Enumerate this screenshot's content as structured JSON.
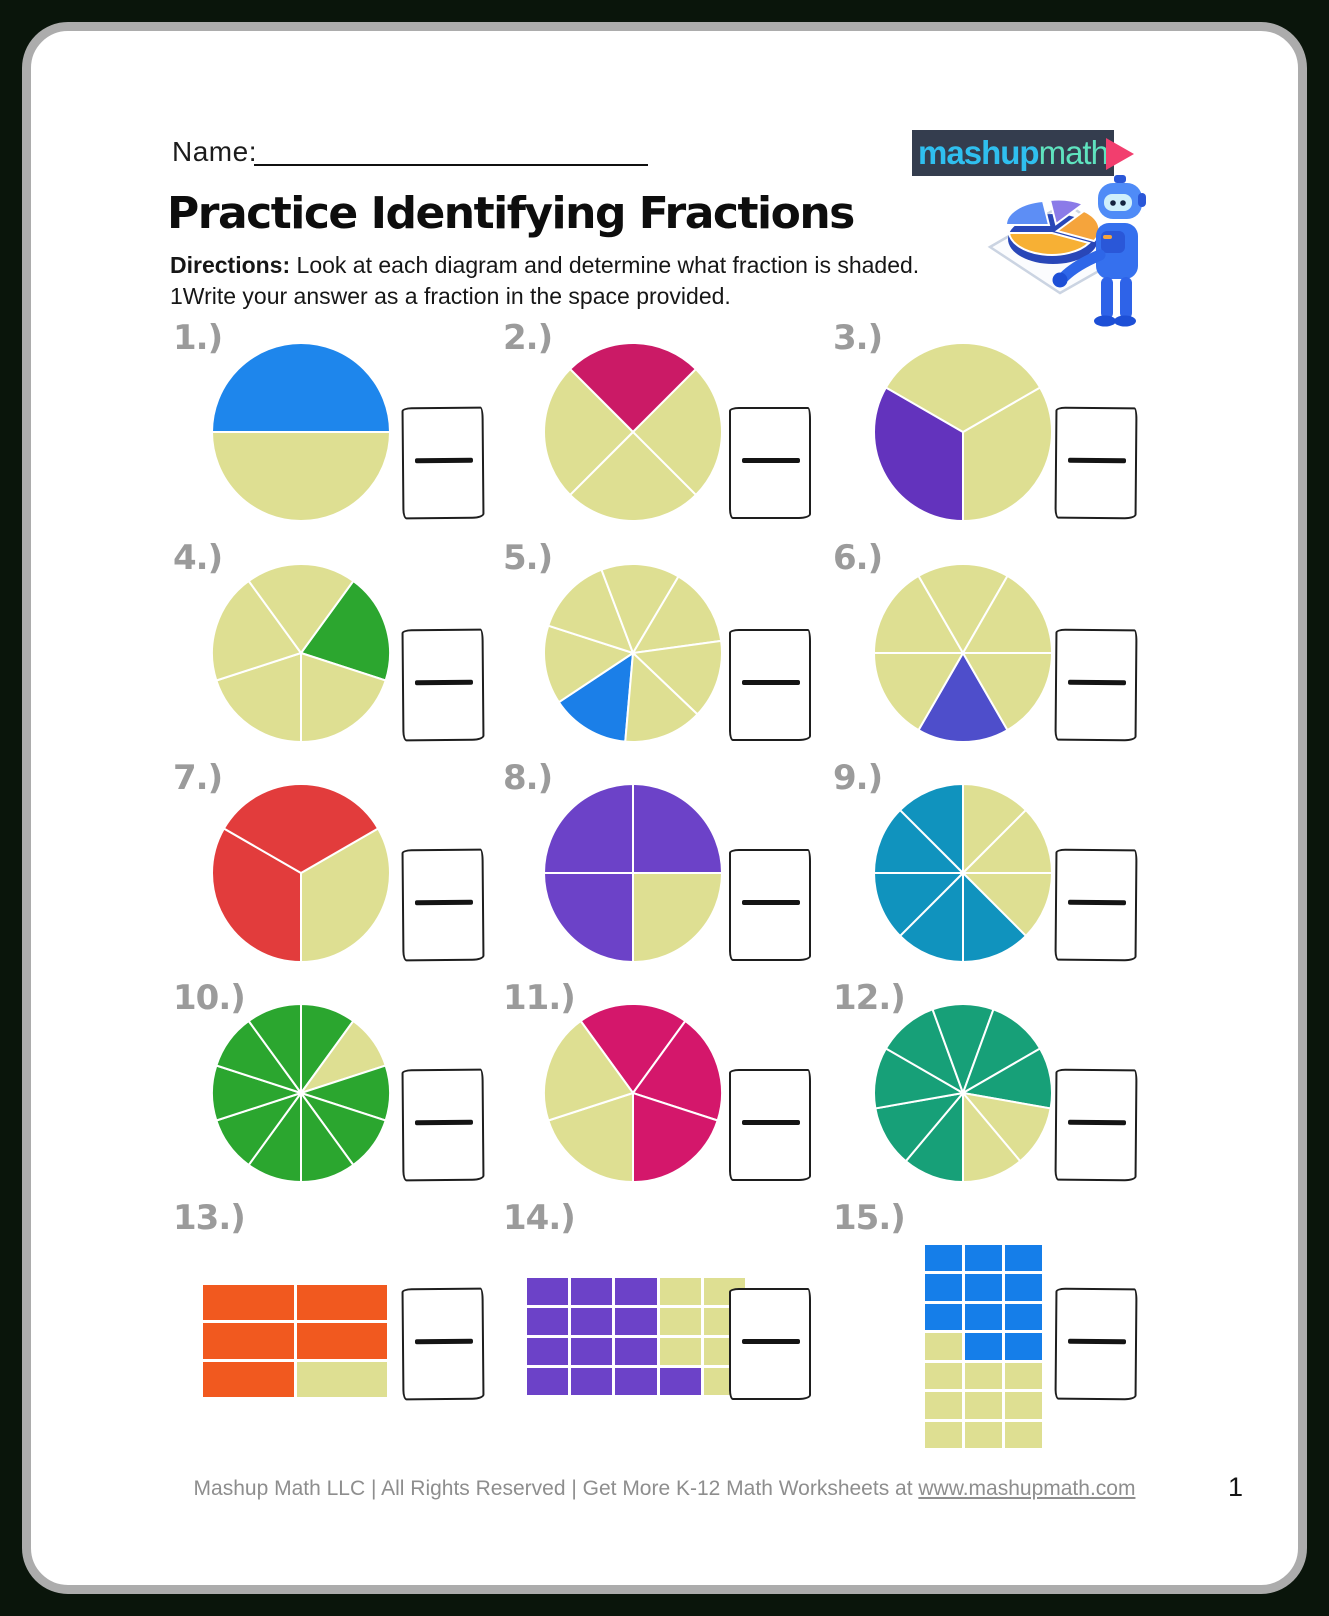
{
  "header": {
    "name_label": "Name:",
    "title": "Practice Identifying Fractions",
    "directions_label": "Directions:",
    "directions_line1": " Look at each diagram and determine what fraction is shaded.",
    "directions_line2": "1Write your answer as a fraction in the space provided."
  },
  "logo": {
    "brand_bold": "mashup",
    "brand_light": "math",
    "bg": "#343D4E",
    "bold_color": "#2FBFEF",
    "light_color": "#5FE3BF",
    "play_color": "#F23E6E"
  },
  "colors": {
    "unshaded": "#DEDF92",
    "label_gray": "#9B9B9B",
    "box_border": "#1E1E1E",
    "sheet_border": "#ACACAC",
    "background": "#0A150B"
  },
  "problems": [
    {
      "label": "1.)",
      "type": "pie",
      "slices": 2,
      "start": 270,
      "shaded": [
        0
      ],
      "color": "#1E86EC"
    },
    {
      "label": "2.)",
      "type": "pie",
      "slices": 4,
      "start": 315,
      "shaded": [
        0
      ],
      "color": "#CB1A66"
    },
    {
      "label": "3.)",
      "type": "pie",
      "slices": 3,
      "start": 60,
      "shaded": [
        1
      ],
      "color": "#6333BD"
    },
    {
      "label": "4.)",
      "type": "pie",
      "slices": 5,
      "start": 36,
      "shaded": [
        0
      ],
      "color": "#2CA62F"
    },
    {
      "label": "5.)",
      "type": "pie",
      "slices": 7,
      "start": 185,
      "shaded": [
        0
      ],
      "color": "#1B7FE8"
    },
    {
      "label": "6.)",
      "type": "pie",
      "slices": 6,
      "start": 150,
      "shaded": [
        0
      ],
      "color": "#4E4ECB"
    },
    {
      "label": "7.)",
      "type": "pie",
      "slices": 3,
      "start": 60,
      "shaded": [
        1,
        2
      ],
      "color": "#E23C3C"
    },
    {
      "label": "8.)",
      "type": "pie",
      "slices": 4,
      "start": 0,
      "shaded": [
        0,
        2,
        3
      ],
      "color": "#6C42C8"
    },
    {
      "label": "9.)",
      "type": "pie",
      "slices": 8,
      "start": 0,
      "shaded": [
        3,
        4,
        5,
        6,
        7
      ],
      "color": "#1093BE"
    },
    {
      "label": "10.)",
      "type": "pie",
      "slices": 10,
      "start": 0,
      "shaded": [
        0,
        2,
        3,
        4,
        5,
        6,
        7,
        8,
        9
      ],
      "color": "#2BA62F"
    },
    {
      "label": "11.)",
      "type": "pie",
      "slices": 5,
      "start": 324,
      "shaded": [
        0,
        1,
        2
      ],
      "color": "#D4176B"
    },
    {
      "label": "12.)",
      "type": "pie",
      "slices": 9,
      "start": 180,
      "shaded": [
        0,
        1,
        2,
        3,
        4,
        5,
        6
      ],
      "color": "#17A078"
    },
    {
      "label": "13.)",
      "type": "grid",
      "cols": 2,
      "rows": 3,
      "shaded": [
        0,
        1,
        2,
        3,
        4
      ],
      "color": "#F1591F"
    },
    {
      "label": "14.)",
      "type": "grid",
      "cols": 5,
      "rows": 4,
      "shaded": [
        0,
        1,
        2,
        5,
        6,
        7,
        10,
        11,
        12,
        15,
        16,
        17,
        18
      ],
      "color": "#6C42C8"
    },
    {
      "label": "15.)",
      "type": "grid",
      "cols": 3,
      "rows": 7,
      "shaded": [
        0,
        1,
        2,
        3,
        4,
        5,
        6,
        7,
        8,
        10,
        11
      ],
      "color": "#157EE9"
    }
  ],
  "footer": {
    "text": "Mashup Math LLC | All Rights Reserved | Get More K-12 Math Worksheets at ",
    "link": "www.mashupmath.com",
    "page_number": "1"
  }
}
